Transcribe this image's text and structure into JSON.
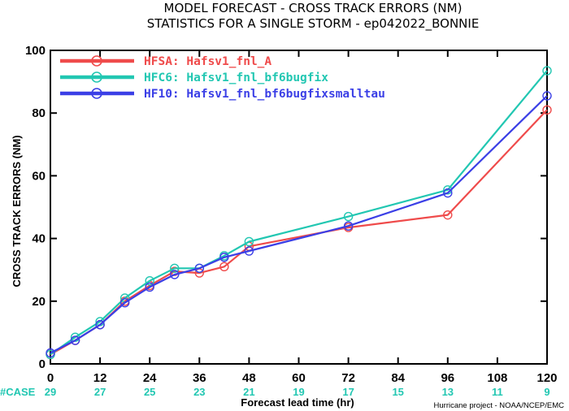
{
  "chart_data": {
    "type": "line",
    "title_lines": [
      "MODEL FORECAST - CROSS TRACK ERRORS (NM)",
      "STATISTICS FOR A SINGLE STORM - ep042022_BONNIE"
    ],
    "xlabel": "Forecast lead time (hr)",
    "ylabel": "CROSS TRACK ERRORS (NM)",
    "xlim": [
      0,
      120
    ],
    "ylim": [
      0,
      100
    ],
    "xticks": [
      0,
      12,
      24,
      36,
      48,
      60,
      72,
      84,
      96,
      108,
      120
    ],
    "yticks": [
      0,
      20,
      40,
      60,
      80,
      100
    ],
    "xtick_labels": [
      "0",
      "12",
      "24",
      "36",
      "48",
      "60",
      "72",
      "84",
      "96",
      "108",
      "120"
    ],
    "ytick_labels": [
      "0",
      "20",
      "40",
      "60",
      "80",
      "100"
    ],
    "grid": false,
    "legend_position": "top-left",
    "series": [
      {
        "name": "HFSA: Hafsv1_fnl_A",
        "color": "#ef4b4b",
        "x": [
          0,
          6,
          12,
          18,
          24,
          30,
          36,
          42,
          48,
          72,
          96,
          120
        ],
        "y": [
          3.0,
          7.5,
          12.5,
          20.0,
          25.0,
          29.5,
          29.0,
          31.0,
          37.5,
          43.5,
          47.5,
          81.0
        ]
      },
      {
        "name": "HFC6: Hafsv1_fnl_bf6bugfix",
        "color": "#22c7b2",
        "x": [
          0,
          6,
          12,
          18,
          24,
          30,
          36,
          42,
          48,
          72,
          96,
          120
        ],
        "y": [
          3.0,
          8.5,
          13.5,
          21.0,
          26.5,
          30.5,
          30.5,
          34.5,
          39.0,
          47.0,
          55.5,
          93.5
        ]
      },
      {
        "name": "HF10: Hafsv1_fnl_bf6bugfixsmalltau",
        "color": "#3b3fe6",
        "x": [
          0,
          6,
          12,
          18,
          24,
          30,
          36,
          42,
          48,
          72,
          96,
          120
        ],
        "y": [
          3.5,
          7.5,
          12.5,
          19.5,
          24.5,
          28.5,
          30.5,
          34.0,
          36.0,
          44.0,
          54.5,
          85.5
        ]
      }
    ],
    "case_label": "#CASE",
    "case_counts": [
      "29",
      "27",
      "25",
      "23",
      "21",
      "19",
      "17",
      "15",
      "13",
      "11",
      "9"
    ],
    "case_color": "#22c7b2",
    "case_label_color": "#22c7b2"
  },
  "footer": {
    "credit": "Hurricane project - NOAA/NCEP/EMC"
  }
}
